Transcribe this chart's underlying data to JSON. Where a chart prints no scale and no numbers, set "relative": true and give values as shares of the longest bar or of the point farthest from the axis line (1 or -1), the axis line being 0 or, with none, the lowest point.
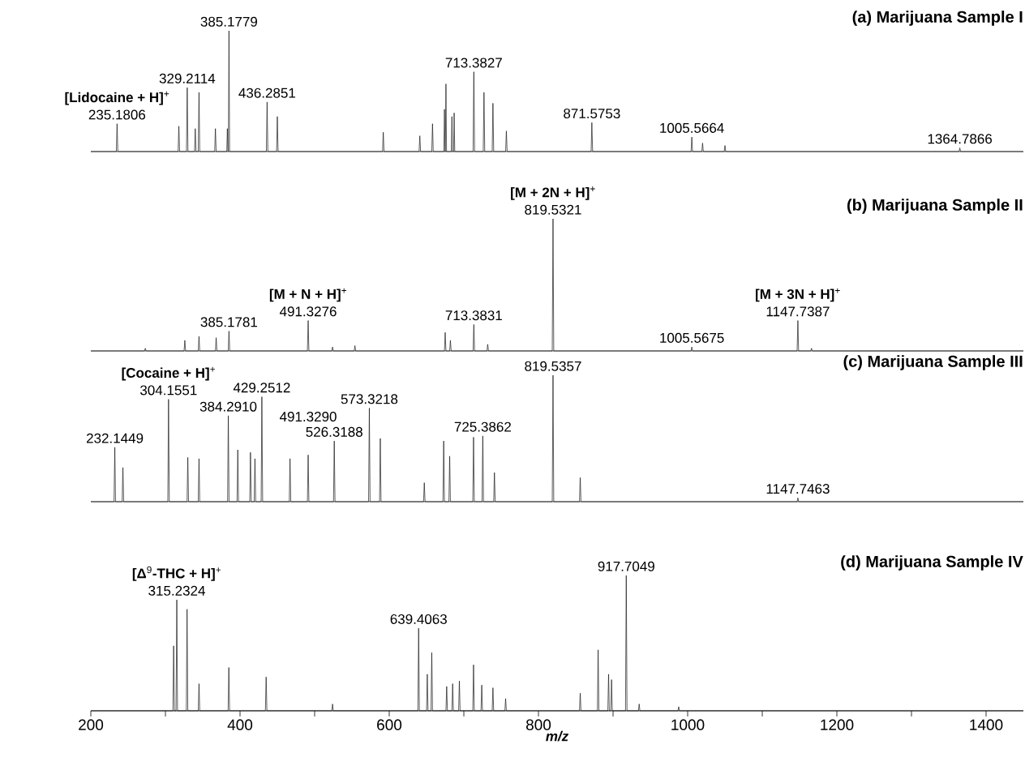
{
  "chart_data": [
    {
      "type": "line",
      "title": "(a) Marijuana Sample I",
      "relative": true,
      "xlim": [
        200,
        1450
      ],
      "tick_labels": false,
      "marker": "none",
      "line_style": "solid",
      "series": [
        {
          "color": "#1a1a1a",
          "x": [
            200,
            234.2,
            235.1806,
            236.2,
            317,
            318,
            319,
            328.2,
            329.2114,
            330.2,
            339,
            340,
            341,
            344,
            345,
            346,
            366,
            367,
            368,
            382.2,
            383,
            383.8,
            384.4,
            385.1779,
            386,
            435.3,
            436.2851,
            437.3,
            449,
            450,
            451,
            591,
            592,
            593,
            640,
            641,
            642,
            657,
            658,
            659,
            673.2,
            674,
            674.8,
            675.2,
            676,
            676.8,
            683.2,
            684,
            684.8,
            686.2,
            687,
            687.8,
            712.4,
            713.3827,
            714.4,
            726,
            727,
            728,
            738,
            739,
            740,
            756,
            757,
            758,
            870.6,
            871.5753,
            872.6,
            1004.6,
            1005.5664,
            1006.6,
            1019,
            1020,
            1021,
            1049,
            1050,
            1051,
            1363.8,
            1364.7866,
            1365.8,
            1450
          ],
          "values": [
            0,
            0,
            0.23,
            0,
            0,
            0.21,
            0,
            0,
            0.53,
            0,
            0,
            0.19,
            0,
            0,
            0.49,
            0,
            0,
            0.19,
            0,
            0,
            0.19,
            0,
            0,
            1,
            0,
            0,
            0.41,
            0,
            0,
            0.29,
            0,
            0,
            0.16,
            0,
            0,
            0.13,
            0,
            0,
            0.23,
            0,
            0,
            0.35,
            0,
            0,
            0.56,
            0,
            0,
            0.29,
            0,
            0,
            0.32,
            0,
            0,
            0.66,
            0,
            0,
            0.49,
            0,
            0,
            0.4,
            0,
            0,
            0.17,
            0,
            0,
            0.24,
            0,
            0,
            0.12,
            0,
            0,
            0.07,
            0,
            0,
            0.05,
            0,
            0,
            0.03,
            0,
            0
          ]
        }
      ],
      "annotations": [
        {
          "text": "385.1779",
          "x": 385.1779,
          "y": 1
        },
        {
          "text": "329.2114",
          "x": 329.2114,
          "y": 0.53
        },
        {
          "text": "436.2851",
          "x": 436.2851,
          "y": 0.41
        },
        {
          "text": "235.1806",
          "x": 235.1806,
          "y": 0.23
        },
        {
          "text": "**[Lidocaine + H]**$^{+}$",
          "x": 235.1806,
          "y": 0.23
        },
        {
          "text": "713.3827",
          "x": 713.3827,
          "y": 0.66
        },
        {
          "text": "871.5753",
          "x": 871.5753,
          "y": 0.24
        },
        {
          "text": "1005.5664",
          "x": 1005.5664,
          "y": 0.12
        },
        {
          "text": "1364.7866",
          "x": 1364.7866,
          "y": 0.03
        }
      ]
    },
    {
      "type": "line",
      "title": "(b) Marijuana Sample II",
      "relative": true,
      "xlim": [
        200,
        1450
      ],
      "tick_labels": false,
      "marker": "none",
      "line_style": "solid",
      "series": [
        {
          "color": "#1a1a1a",
          "x": [
            200,
            272,
            273,
            274,
            325,
            326,
            327,
            344,
            345,
            346,
            367,
            368,
            369,
            384.2,
            385.1781,
            386.2,
            490.3,
            491.3276,
            492.3,
            523,
            524,
            525,
            553,
            554,
            555,
            674,
            675,
            676,
            681,
            682,
            683,
            712.4,
            713.3831,
            714.4,
            731,
            732,
            733,
            818.5,
            819.5321,
            820.5,
            1004.6,
            1005.5675,
            1006.6,
            1146.7,
            1147.7387,
            1148.7,
            1165,
            1166,
            1167,
            1450
          ],
          "values": [
            0,
            0,
            0.02,
            0,
            0,
            0.08,
            0,
            0,
            0.11,
            0,
            0,
            0.1,
            0,
            0,
            0.15,
            0,
            0,
            0.23,
            0,
            0,
            0.03,
            0,
            0,
            0.04,
            0,
            0,
            0.14,
            0,
            0,
            0.08,
            0,
            0,
            0.2,
            0,
            0,
            0.05,
            0,
            0,
            1,
            0,
            0,
            0.03,
            0,
            0,
            0.23,
            0,
            0,
            0.02,
            0,
            0
          ]
        }
      ],
      "annotations": [
        {
          "text": "819.5321",
          "x": 819.5321,
          "y": 1
        },
        {
          "text": "**[M + 2N + H]**$^{+}$",
          "x": 819.5321,
          "y": 1
        },
        {
          "text": "385.1781",
          "x": 385.1781,
          "y": 0.15
        },
        {
          "text": "491.3276",
          "x": 491.3276,
          "y": 0.23
        },
        {
          "text": "**[M + N + H]**$^{+}$",
          "x": 491.3276,
          "y": 0.23
        },
        {
          "text": "713.3831",
          "x": 713.3831,
          "y": 0.2
        },
        {
          "text": "1005.5675",
          "x": 1005.5675,
          "y": 0.03
        },
        {
          "text": "1147.7387",
          "x": 1147.7387,
          "y": 0.23
        },
        {
          "text": "**[M + 3N + H]**$^{+}$",
          "x": 1147.7387,
          "y": 0.23
        }
      ]
    },
    {
      "type": "line",
      "title": "(c) Marijuana Sample III",
      "relative": true,
      "xlim": [
        200,
        1450
      ],
      "tick_labels": false,
      "marker": "none",
      "line_style": "solid",
      "series": [
        {
          "color": "#1a1a1a",
          "x": [
            200,
            231.1,
            232.1449,
            233.1,
            242,
            243,
            244,
            303.2,
            304.1551,
            305.2,
            329,
            330,
            331,
            344,
            345,
            346,
            383.3,
            384.291,
            385.3,
            396,
            397,
            398,
            413,
            414,
            415,
            419,
            420,
            421,
            428.3,
            429.2512,
            430.3,
            466,
            467,
            468,
            490.3,
            491.329,
            492.3,
            525.3,
            526.3188,
            527.3,
            572.3,
            573.3218,
            574.3,
            587,
            588,
            589,
            646,
            647,
            648,
            672,
            673,
            674,
            680,
            681,
            682,
            712,
            713,
            714,
            724.4,
            725.3862,
            726.4,
            740,
            741,
            742,
            818.5,
            819.5357,
            820.5,
            855,
            856,
            857,
            1146.7,
            1147.7463,
            1148.7,
            1450
          ],
          "values": [
            0,
            0,
            0.43,
            0,
            0,
            0.27,
            0,
            0,
            0.81,
            0,
            0,
            0.35,
            0,
            0,
            0.34,
            0,
            0,
            0.68,
            0,
            0,
            0.41,
            0,
            0,
            0.39,
            0,
            0,
            0.34,
            0,
            0,
            0.83,
            0,
            0,
            0.34,
            0,
            0,
            0.37,
            0,
            0,
            0.48,
            0,
            0,
            0.74,
            0,
            0,
            0.5,
            0,
            0,
            0.15,
            0,
            0,
            0.48,
            0,
            0,
            0.36,
            0,
            0,
            0.51,
            0,
            0,
            0.52,
            0,
            0,
            0.23,
            0,
            0,
            1,
            0,
            0,
            0.19,
            0,
            0,
            0.03,
            0,
            0
          ]
        }
      ],
      "annotations": [
        {
          "text": "819.5357",
          "x": 819.5357,
          "y": 1
        },
        {
          "text": "304.1551",
          "x": 304.1551,
          "y": 0.81
        },
        {
          "text": "**[Cocaine + H]**$^{+}$",
          "x": 304.1551,
          "y": 0.81
        },
        {
          "text": "429.2512",
          "x": 429.2512,
          "y": 0.83
        },
        {
          "text": "384.2910",
          "x": 384.291,
          "y": 0.68
        },
        {
          "text": "573.3218",
          "x": 573.3218,
          "y": 0.74
        },
        {
          "text": "232.1449",
          "x": 232.1449,
          "y": 0.43
        },
        {
          "text": "526.3188",
          "x": 526.3188,
          "y": 0.48
        },
        {
          "text": "491.3290",
          "x": 491.329,
          "y": 0.37
        },
        {
          "text": "725.3862",
          "x": 725.3862,
          "y": 0.52
        },
        {
          "text": "1147.7463",
          "x": 1147.7463,
          "y": 0.03
        }
      ]
    },
    {
      "type": "line",
      "title": "(d) Marijuana Sample IV",
      "relative": true,
      "xlim": [
        200,
        1450
      ],
      "tick_labels": "x",
      "marker": "none",
      "line_style": "solid",
      "xlabel": "m/z",
      "xticks": [
        200,
        {
          "value": 300,
          "label": null
        },
        400,
        {
          "value": 500,
          "label": null
        },
        600,
        {
          "value": 700,
          "label": null
        },
        800,
        {
          "value": 900,
          "label": null
        },
        1000,
        {
          "value": 1100,
          "label": null
        },
        1200,
        {
          "value": 1300,
          "label": null
        },
        1400
      ],
      "series": [
        {
          "color": "#1a1a1a",
          "x": [
            200,
            310,
            311,
            312,
            314.2,
            315.2324,
            316.2,
            328,
            329,
            330,
            344,
            345,
            346,
            384,
            385,
            386,
            434,
            435,
            436,
            523,
            524,
            525,
            638.4,
            639.4063,
            640.4,
            650,
            651,
            652,
            656,
            657,
            658,
            676,
            677,
            678,
            684,
            685,
            686,
            693,
            694,
            695,
            712,
            713,
            714,
            723,
            724,
            725,
            738,
            739,
            740,
            755,
            756,
            757,
            855,
            856,
            857,
            879,
            880,
            881,
            893,
            894,
            895,
            897,
            898,
            899,
            916.7,
            917.7049,
            918.7,
            934,
            935,
            936,
            987,
            988,
            989,
            1450
          ],
          "values": [
            0,
            0,
            0.48,
            0,
            0,
            0.82,
            0,
            0,
            0.75,
            0,
            0,
            0.2,
            0,
            0,
            0.32,
            0,
            0,
            0.25,
            0,
            0,
            0.05,
            0,
            0,
            0.61,
            0,
            0,
            0.27,
            0,
            0,
            0.43,
            0,
            0,
            0.18,
            0,
            0,
            0.2,
            0,
            0,
            0.22,
            0,
            0,
            0.34,
            0,
            0,
            0.19,
            0,
            0,
            0.17,
            0,
            0,
            0.09,
            0,
            0,
            0.13,
            0,
            0,
            0.45,
            0,
            0,
            0.27,
            0,
            0,
            0.23,
            0,
            0,
            1,
            0,
            0,
            0.05,
            0,
            0,
            0.03,
            0,
            0
          ]
        }
      ],
      "annotations": [
        {
          "text": "917.7049",
          "x": 917.7049,
          "y": 1
        },
        {
          "text": "315.2324",
          "x": 315.2324,
          "y": 0.82
        },
        {
          "text": "**[Δ**$^{9}$**-THC + H]**$^{+}$",
          "x": 315.2324,
          "y": 0.82
        },
        {
          "text": "639.4063",
          "x": 639.4063,
          "y": 0.61
        }
      ]
    }
  ]
}
